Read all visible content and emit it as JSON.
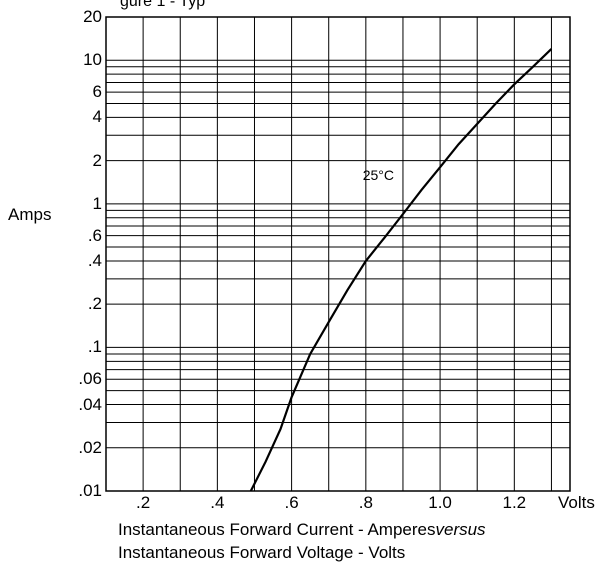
{
  "page_title_fragment": "gure 1 - Typ",
  "chart_data": {
    "type": "line",
    "title": "",
    "xlabel": "Volts",
    "ylabel": "Amps",
    "caption_lines": [
      "Instantaneous Forward Current - Amperes",
      "versus",
      "Instantaneous Forward Voltage - Volts"
    ],
    "x_scale": "linear",
    "y_scale": "log",
    "xlim": [
      0.1,
      1.35
    ],
    "ylim": [
      0.01,
      20
    ],
    "grid": true,
    "x_ticks": [
      0.2,
      0.4,
      0.6,
      0.8,
      1.0,
      1.2
    ],
    "x_tick_labels": [
      ".2",
      ".4",
      ".6",
      ".8",
      "1.0",
      "1.2"
    ],
    "y_ticks": [
      0.01,
      0.02,
      0.04,
      0.06,
      0.1,
      0.2,
      0.4,
      0.6,
      1,
      2,
      4,
      6,
      10,
      20
    ],
    "y_tick_labels": [
      ".01",
      ".02",
      ".04",
      ".06",
      ".1",
      ".2",
      ".4",
      ".6",
      "1",
      "2",
      "4",
      "6",
      "10",
      "20"
    ],
    "annotations": [
      {
        "text": "25°C",
        "x": 0.84,
        "y": 2.0
      }
    ],
    "series": [
      {
        "x": [
          0.49,
          0.53,
          0.57,
          0.6,
          0.65,
          0.7,
          0.75,
          0.8,
          0.85,
          0.9,
          0.95,
          1.0,
          1.05,
          1.1,
          1.15,
          1.2,
          1.25,
          1.3
        ],
        "y": [
          0.01,
          0.016,
          0.027,
          0.045,
          0.09,
          0.15,
          0.25,
          0.4,
          0.58,
          0.85,
          1.25,
          1.8,
          2.6,
          3.6,
          5.0,
          6.8,
          9.0,
          12.0
        ]
      }
    ]
  }
}
